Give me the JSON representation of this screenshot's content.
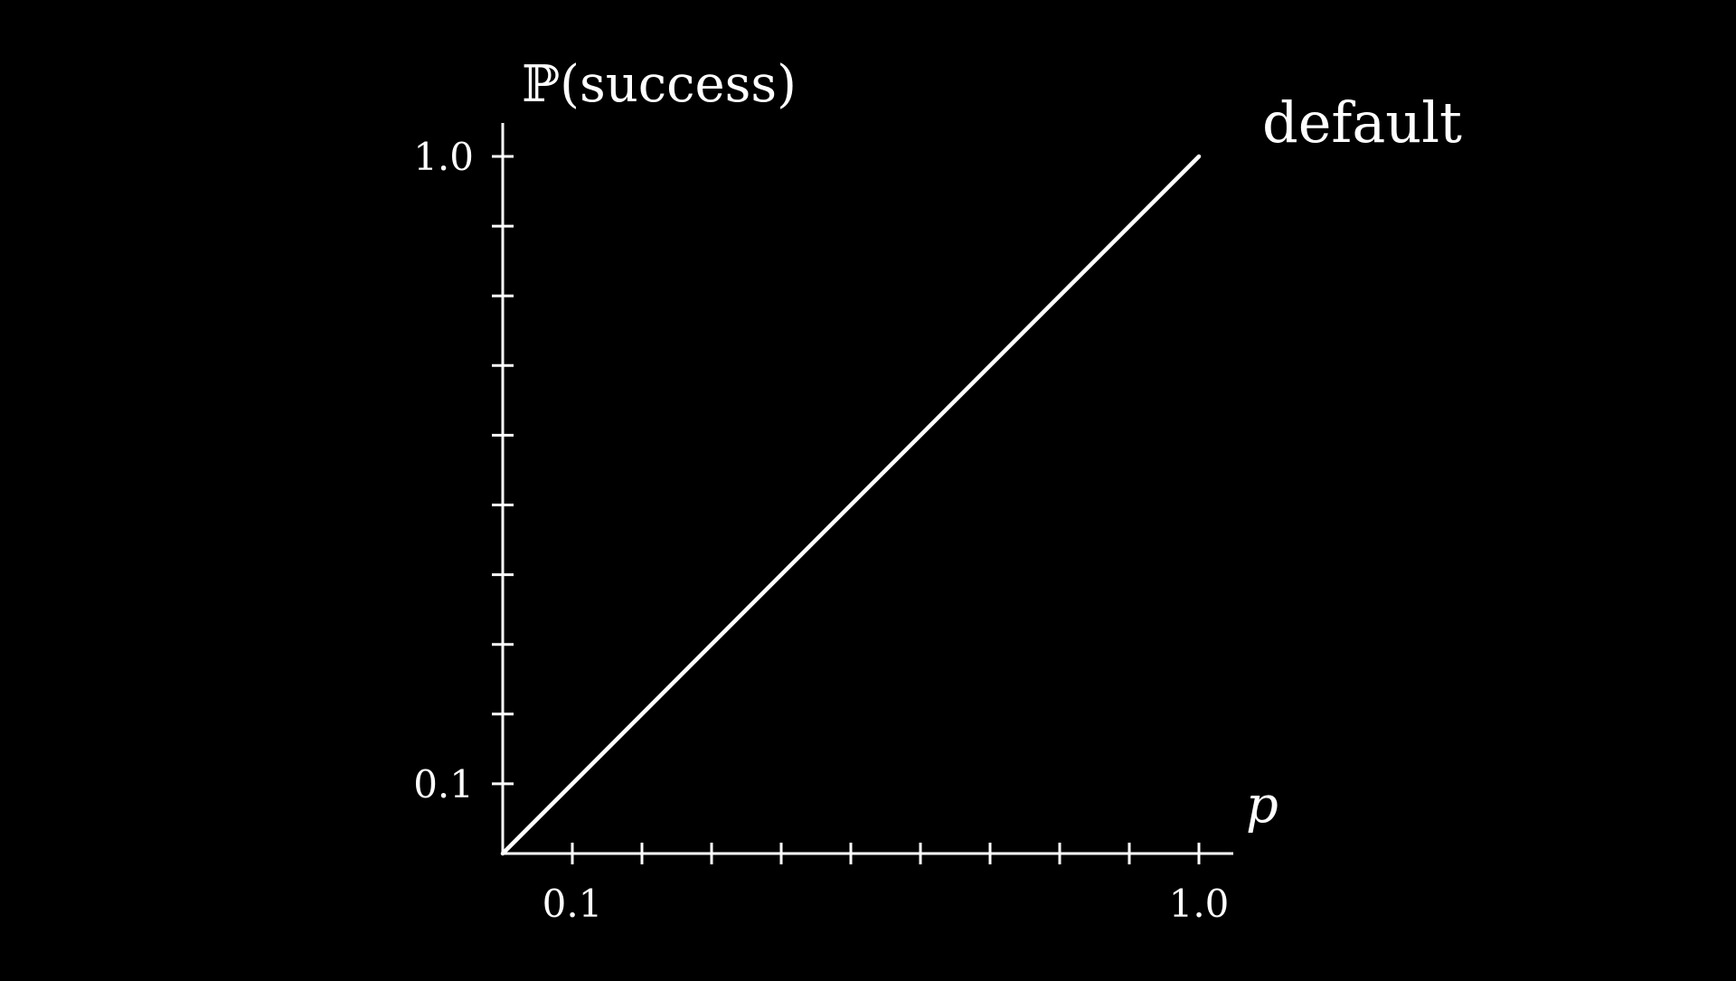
{
  "chart_data": {
    "type": "line",
    "title": "",
    "xlabel": "p",
    "ylabel": "ℙ(success)",
    "xlim": [
      0,
      1.0
    ],
    "ylim": [
      0,
      1.0
    ],
    "x_ticks": [
      0.1,
      0.2,
      0.3,
      0.4,
      0.5,
      0.6,
      0.7,
      0.8,
      0.9,
      1.0
    ],
    "y_ticks": [
      0.1,
      0.2,
      0.3,
      0.4,
      0.5,
      0.6,
      0.7,
      0.8,
      0.9,
      1.0
    ],
    "x_tick_labels": [
      {
        "value": 0.1,
        "label": "0.1"
      },
      {
        "value": 1.0,
        "label": "1.0"
      }
    ],
    "y_tick_labels": [
      {
        "value": 0.1,
        "label": "0.1"
      },
      {
        "value": 1.0,
        "label": "1.0"
      }
    ],
    "grid": false,
    "series": [
      {
        "name": "default",
        "x": [
          0.0,
          1.0
        ],
        "y": [
          0.0,
          1.0
        ],
        "color": "#ffffff"
      }
    ]
  },
  "colors": {
    "background": "#000000",
    "foreground": "#ffffff"
  }
}
